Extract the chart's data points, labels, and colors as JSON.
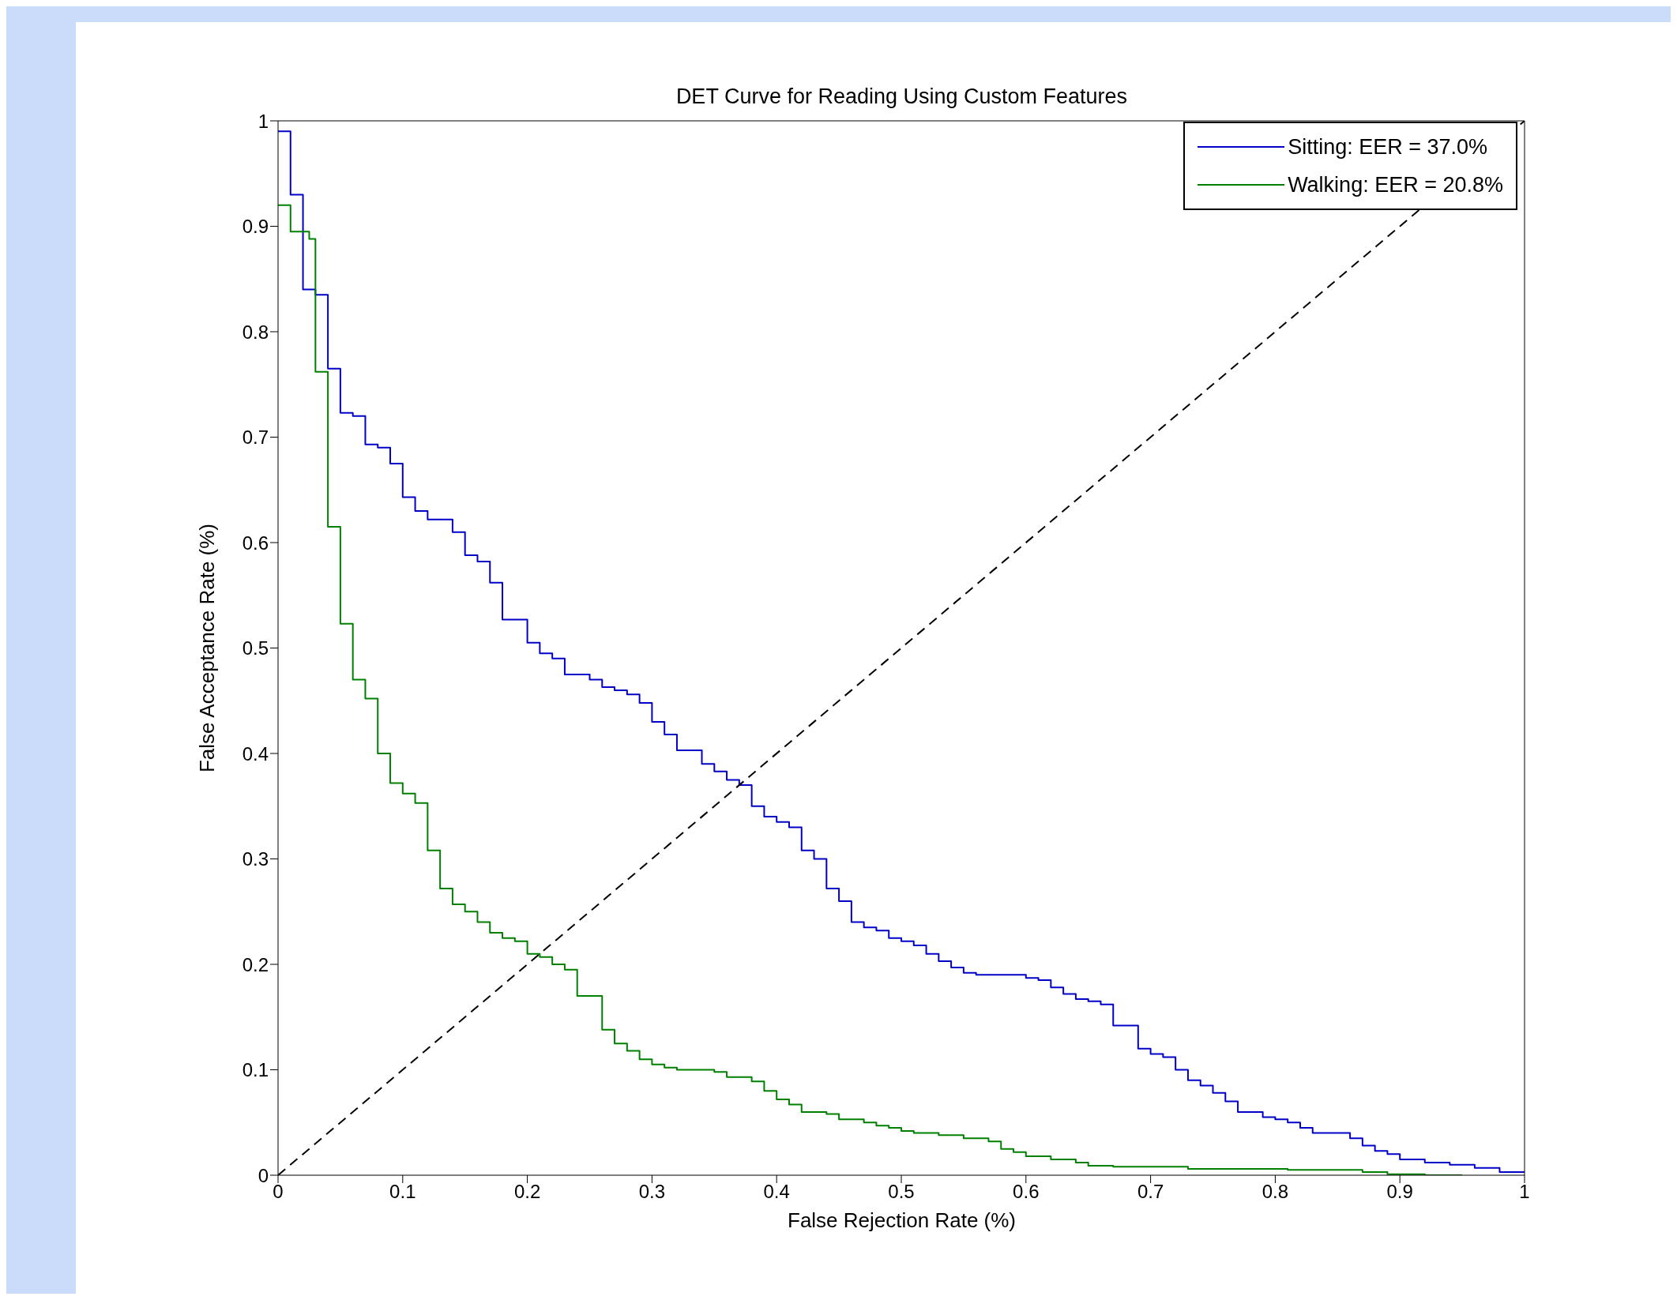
{
  "chart_data": {
    "type": "step",
    "title": "DET Curve for Reading Using Custom Features",
    "xlabel": "False Rejection Rate (%)",
    "ylabel": "False Acceptance Rate (%)",
    "xlim": [
      0,
      1
    ],
    "ylim": [
      0,
      1
    ],
    "xticks": [
      0,
      0.1,
      0.2,
      0.3,
      0.4,
      0.5,
      0.6,
      0.7,
      0.8,
      0.9,
      1
    ],
    "yticks": [
      0,
      0.1,
      0.2,
      0.3,
      0.4,
      0.5,
      0.6,
      0.7,
      0.8,
      0.9,
      1
    ],
    "legend": "top right",
    "marker": "none",
    "series": [
      {
        "name": "Sitting: EER = 37.0%",
        "color": "#0000c8",
        "x": [
          0,
          0.01,
          0.02,
          0.03,
          0.04,
          0.05,
          0.06,
          0.07,
          0.08,
          0.09,
          0.1,
          0.11,
          0.12,
          0.14,
          0.15,
          0.16,
          0.17,
          0.18,
          0.2,
          0.21,
          0.22,
          0.23,
          0.25,
          0.26,
          0.27,
          0.28,
          0.29,
          0.3,
          0.31,
          0.32,
          0.34,
          0.35,
          0.36,
          0.37,
          0.38,
          0.39,
          0.4,
          0.41,
          0.42,
          0.43,
          0.44,
          0.45,
          0.46,
          0.47,
          0.48,
          0.49,
          0.5,
          0.51,
          0.52,
          0.53,
          0.54,
          0.55,
          0.56,
          0.6,
          0.61,
          0.62,
          0.63,
          0.64,
          0.65,
          0.66,
          0.67,
          0.69,
          0.7,
          0.71,
          0.72,
          0.73,
          0.74,
          0.75,
          0.76,
          0.77,
          0.79,
          0.8,
          0.81,
          0.82,
          0.83,
          0.86,
          0.87,
          0.88,
          0.89,
          0.9,
          0.92,
          0.94,
          0.96,
          0.98,
          1
        ],
        "values": [
          0.99,
          0.93,
          0.84,
          0.835,
          0.765,
          0.723,
          0.72,
          0.693,
          0.69,
          0.675,
          0.643,
          0.63,
          0.622,
          0.61,
          0.588,
          0.582,
          0.562,
          0.527,
          0.505,
          0.495,
          0.49,
          0.475,
          0.47,
          0.463,
          0.46,
          0.456,
          0.448,
          0.43,
          0.418,
          0.403,
          0.39,
          0.383,
          0.375,
          0.37,
          0.35,
          0.34,
          0.335,
          0.33,
          0.308,
          0.3,
          0.272,
          0.26,
          0.24,
          0.235,
          0.232,
          0.225,
          0.222,
          0.218,
          0.21,
          0.203,
          0.197,
          0.192,
          0.19,
          0.187,
          0.185,
          0.178,
          0.172,
          0.167,
          0.165,
          0.162,
          0.142,
          0.12,
          0.115,
          0.112,
          0.1,
          0.09,
          0.085,
          0.078,
          0.07,
          0.06,
          0.055,
          0.053,
          0.05,
          0.045,
          0.04,
          0.035,
          0.028,
          0.023,
          0.02,
          0.015,
          0.012,
          0.01,
          0.007,
          0.003,
          0.003
        ]
      },
      {
        "name": "Walking: EER = 20.8%",
        "color": "#008000",
        "x": [
          0,
          0.01,
          0.025,
          0.03,
          0.04,
          0.05,
          0.06,
          0.07,
          0.08,
          0.09,
          0.1,
          0.11,
          0.12,
          0.13,
          0.14,
          0.15,
          0.16,
          0.17,
          0.18,
          0.19,
          0.2,
          0.21,
          0.22,
          0.23,
          0.24,
          0.26,
          0.27,
          0.28,
          0.29,
          0.3,
          0.31,
          0.32,
          0.35,
          0.36,
          0.38,
          0.39,
          0.4,
          0.41,
          0.42,
          0.44,
          0.45,
          0.47,
          0.48,
          0.49,
          0.5,
          0.51,
          0.53,
          0.55,
          0.57,
          0.58,
          0.59,
          0.6,
          0.62,
          0.64,
          0.65,
          0.67,
          0.73,
          0.81,
          0.87,
          0.89,
          0.92,
          0.95
        ],
        "values": [
          0.92,
          0.895,
          0.888,
          0.762,
          0.615,
          0.523,
          0.47,
          0.452,
          0.4,
          0.372,
          0.362,
          0.353,
          0.308,
          0.272,
          0.257,
          0.25,
          0.24,
          0.23,
          0.225,
          0.222,
          0.21,
          0.207,
          0.2,
          0.195,
          0.17,
          0.138,
          0.125,
          0.118,
          0.11,
          0.105,
          0.102,
          0.1,
          0.098,
          0.093,
          0.089,
          0.08,
          0.072,
          0.067,
          0.06,
          0.058,
          0.053,
          0.05,
          0.047,
          0.045,
          0.042,
          0.04,
          0.038,
          0.035,
          0.032,
          0.025,
          0.022,
          0.018,
          0.015,
          0.012,
          0.009,
          0.008,
          0.006,
          0.005,
          0.003,
          0.001,
          0,
          0
        ]
      },
      {
        "type": "line",
        "color": "#000000",
        "line_style": "dashed",
        "x": [
          0,
          1
        ],
        "values": [
          0,
          1
        ]
      }
    ]
  }
}
